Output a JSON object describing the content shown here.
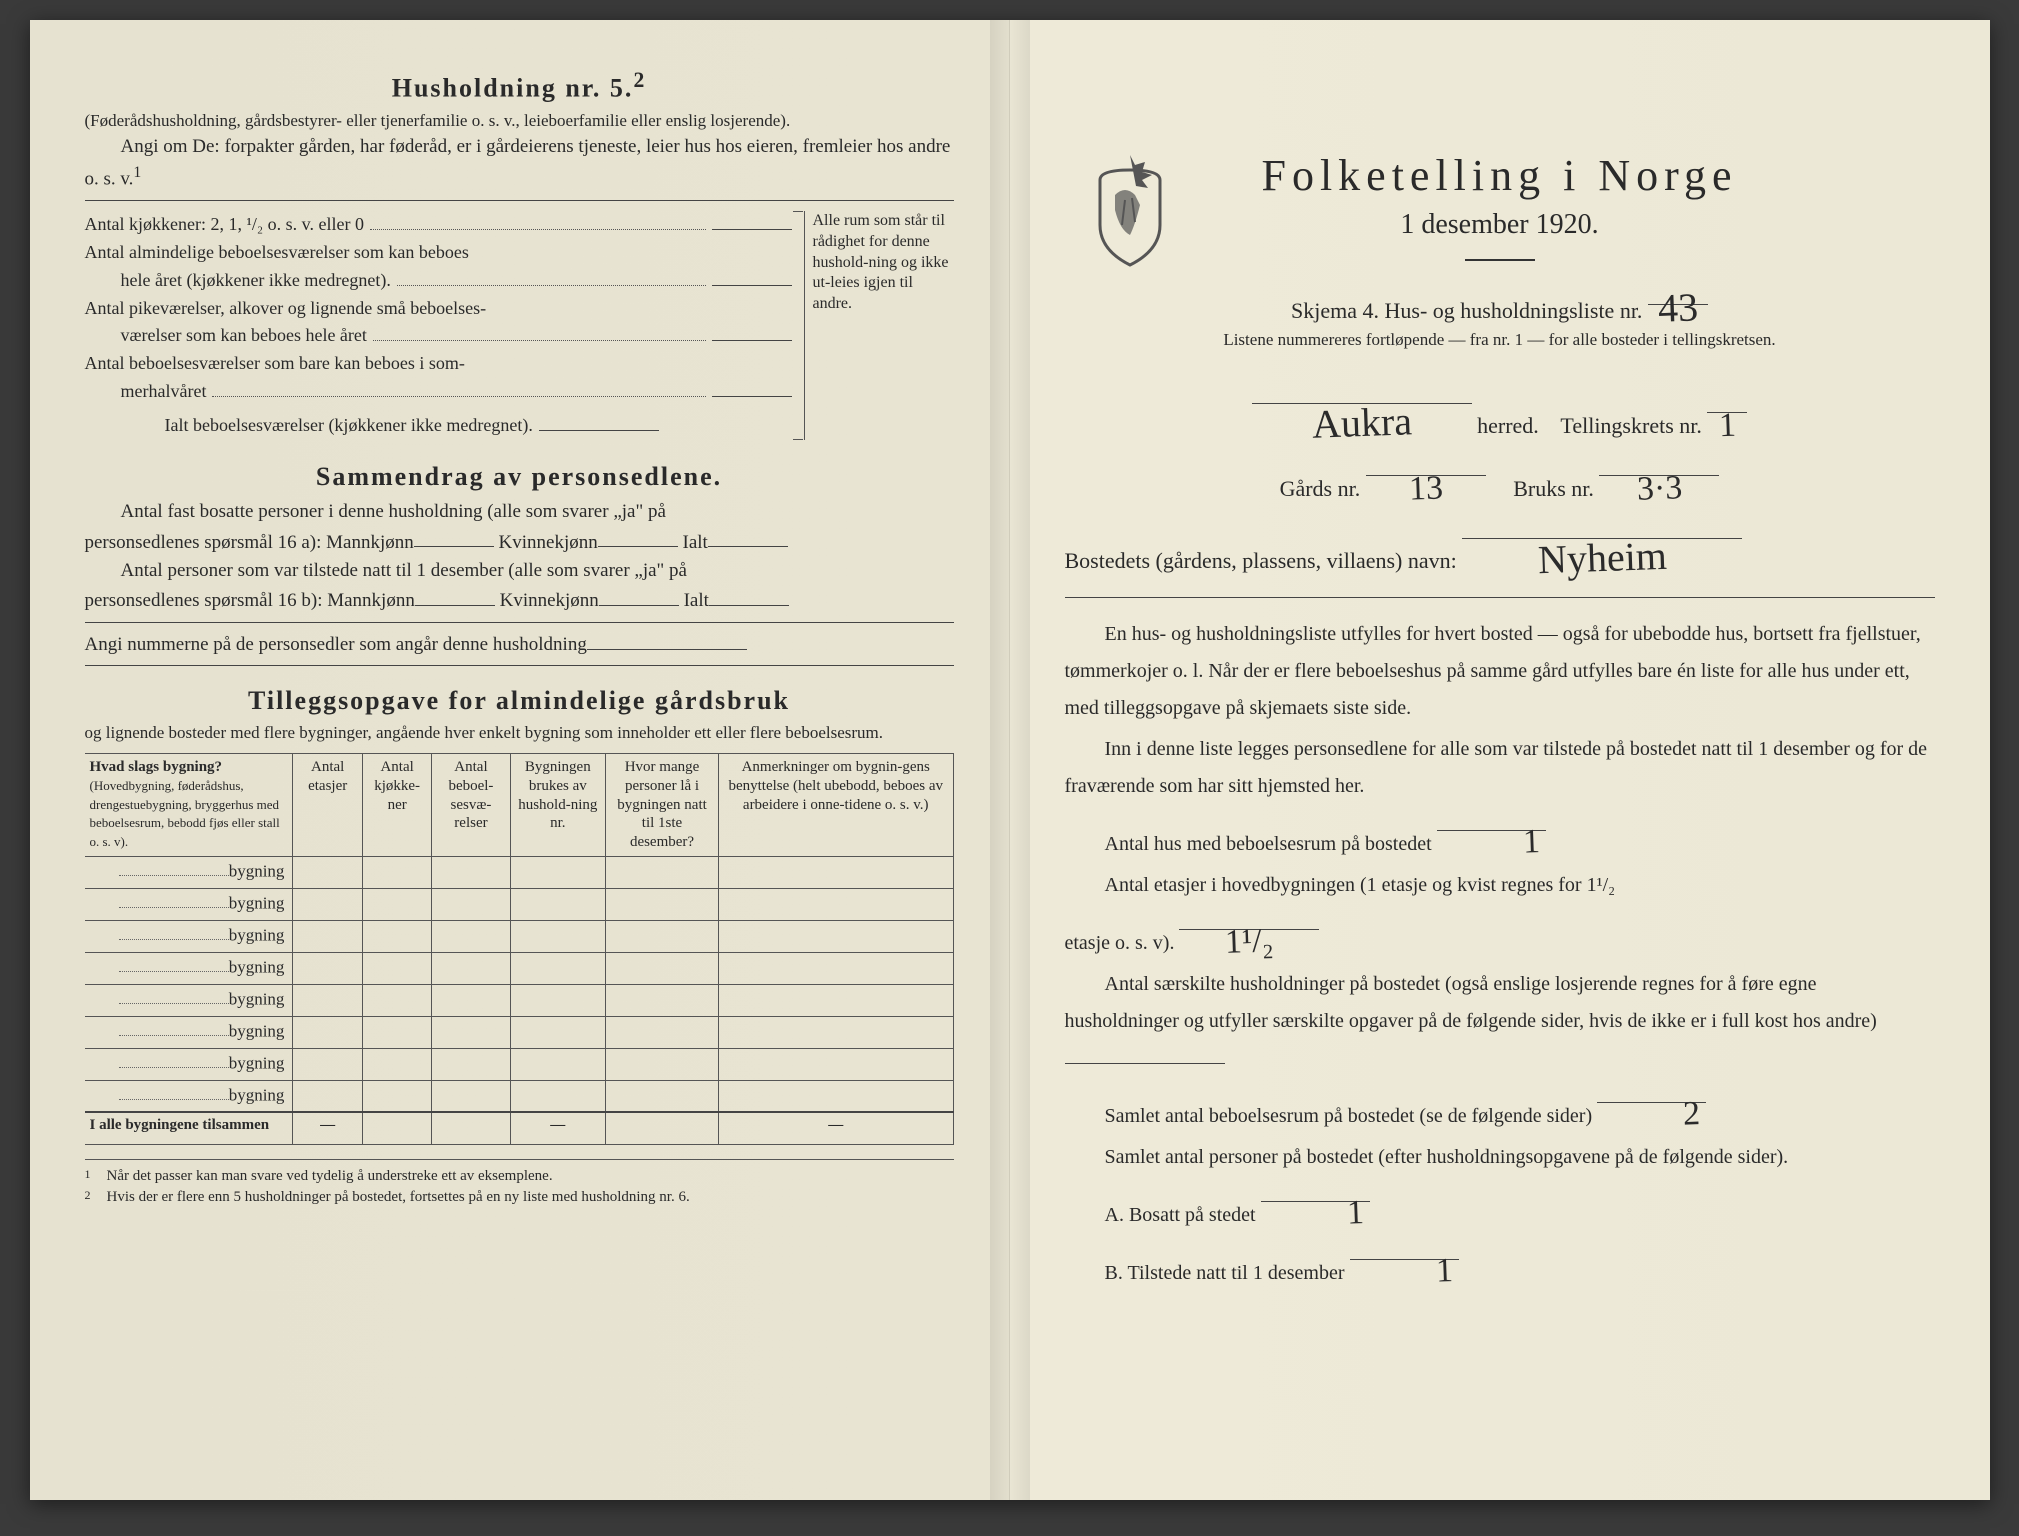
{
  "colors": {
    "paper_left": "#e8e4d2",
    "paper_right": "#ece8d6",
    "ink": "#2a2a2a",
    "background": "#3a3a3a"
  },
  "left": {
    "title": "Husholdning nr. 5.",
    "title_sup": "2",
    "intro_paren": "(Føderådshusholdning, gårdsbestyrer- eller tjenerfamilie o. s. v., leieboerfamilie eller enslig losjerende).",
    "intro_body": "Angi om De: forpakter gården, har føderåd, er i gårdeierens tjeneste, leier hus hos eieren, fremleier hos andre o. s. v.",
    "intro_sup": "1",
    "kitchen": {
      "l1": "Antal kjøkkener: 2, 1, ¹/₂ o. s. v. eller 0",
      "l2a": "Antal almindelige beboelsesværelser som kan beboes",
      "l2b": "hele året (kjøkkener ikke medregnet).",
      "l3a": "Antal pikeværelser, alkover og lignende små beboelses-",
      "l3b": "værelser som kan beboes hele året",
      "l4a": "Antal beboelsesværelser som bare kan beboes i som-",
      "l4b": "merhalvåret",
      "l5": "Ialt beboelsesværelser (kjøkkener ikke medregnet).",
      "side": "Alle rum som står til rådighet for denne hushold-ning og ikke ut-leies igjen til andre."
    },
    "sammendrag": {
      "title": "Sammendrag av personsedlene.",
      "p1a": "Antal fast bosatte personer i denne husholdning (alle som svarer „ja\" på",
      "p1b": "personsedlenes spørsmål 16 a): Mannkjønn",
      "kvinne": "Kvinnekjønn",
      "ialt": "Ialt",
      "p2a": "Antal personer som var tilstede natt til 1 desember (alle som svarer „ja\" på",
      "p2b": "personsedlenes spørsmål 16 b): Mannkjønn",
      "p3": "Angi nummerne på de personsedler som angår denne husholdning"
    },
    "tilleggs": {
      "title": "Tilleggsopgave for almindelige gårdsbruk",
      "sub": "og lignende bosteder med flere bygninger, angående hver enkelt bygning som inneholder ett eller flere beboelsesrum.",
      "headers": {
        "c1a": "Hvad slags bygning?",
        "c1b": "(Hovedbygning, føderådshus, drengestuebygning, bryggerhus med beboelsesrum, bebodd fjøs eller stall o. s. v).",
        "c2": "Antal etasjer",
        "c3": "Antal kjøkke-ner",
        "c4": "Antal beboel-sesvæ-relser",
        "c5": "Bygningen brukes av hushold-ning nr.",
        "c6": "Hvor mange personer lå i bygningen natt til 1ste desember?",
        "c7": "Anmerkninger om bygnin-gens benyttelse (helt ubebodd, beboes av arbeidere i onne-tidene o. s. v.)"
      },
      "row_label": "bygning",
      "sum_label": "I alle bygningene tilsammen",
      "dash": "—"
    },
    "footnotes": {
      "f1": "Når det passer kan man svare ved tydelig å understreke ett av eksemplene.",
      "f2": "Hvis der er flere enn 5 husholdninger på bostedet, fortsettes på en ny liste med husholdning nr. 6."
    }
  },
  "right": {
    "main_title": "Folketelling i Norge",
    "sub_title": "1 desember 1920.",
    "skjema": "Skjema 4.  Hus- og husholdningsliste nr.",
    "skjema_val": "43",
    "listene": "Listene nummereres fortløpende — fra nr. 1 — for alle bosteder i tellingskretsen.",
    "herred_val": "Aukra",
    "herred_lbl": "herred.",
    "krets_lbl": "Tellingskrets nr.",
    "krets_val": "1",
    "gards_lbl": "Gårds nr.",
    "gards_val": "13",
    "bruks_lbl": "Bruks nr.",
    "bruks_val": "3·3",
    "bosted_lbl": "Bostedets (gårdens, plassens, villaens) navn:",
    "bosted_val": "Nyheim",
    "para1": "En hus- og husholdningsliste utfylles for hvert bosted — også for ubebodde hus, bortsett fra fjellstuer, tømmerkojer o. l.  Når der er flere beboelseshus på samme gård utfylles bare én liste for alle hus under ett, med tilleggsopgave på skjemaets siste side.",
    "para2": "Inn i denne liste legges personsedlene for alle som var tilstede på bostedet natt til 1 desember og for de fraværende som har sitt hjemsted her.",
    "q1": "Antal hus med beboelsesrum på bostedet",
    "q1_val": "1",
    "q2a": "Antal etasjer i hovedbygningen (1 etasje og kvist regnes for 1¹/₂",
    "q2b": "etasje o. s. v).",
    "q2_val": "1¹/₂",
    "q3": "Antal særskilte husholdninger på bostedet (også enslige losjerende regnes for å føre egne husholdninger og utfyller særskilte opgaver på de følgende sider, hvis de ikke er i full kost hos andre)",
    "q4": "Samlet antal beboelsesrum på bostedet (se de følgende sider)",
    "q4_val": "2",
    "q5": "Samlet antal personer på bostedet (efter husholdningsopgavene på de følgende sider).",
    "qA": "A.  Bosatt på stedet",
    "qA_val": "1",
    "qB": "B.  Tilstede natt til 1 desember",
    "qB_val": "1"
  }
}
